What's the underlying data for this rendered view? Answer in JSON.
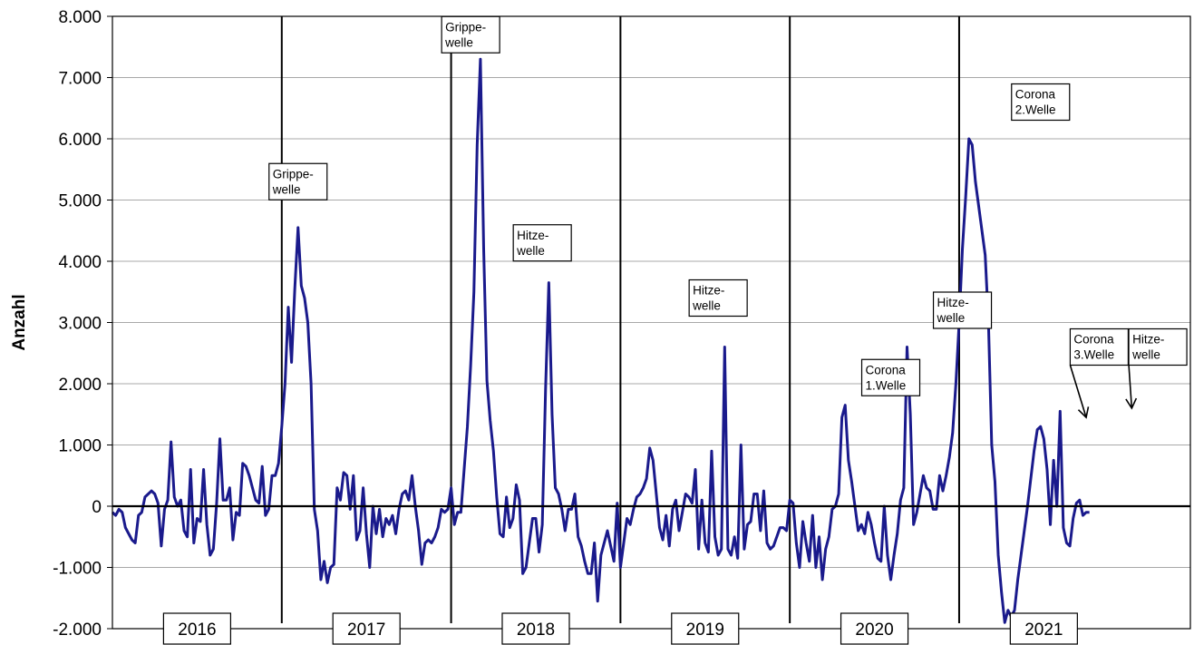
{
  "chart_data": {
    "type": "line",
    "title": "",
    "xlabel": "",
    "ylabel": "Anzahl",
    "ylim": [
      -2000,
      8000
    ],
    "y_ticks": [
      "8.000",
      "7.000",
      "6.000",
      "5.000",
      "4.000",
      "3.000",
      "2.000",
      "1.000",
      "0",
      "-1.000",
      "-2.000"
    ],
    "y_tick_values": [
      8000,
      7000,
      6000,
      5000,
      4000,
      3000,
      2000,
      1000,
      0,
      -1000,
      -2000
    ],
    "grid": "horizontal",
    "line_color": "#1a1a8c",
    "year_labels": [
      "2016",
      "2017",
      "2018",
      "2019",
      "2020",
      "2021"
    ],
    "x_unit": "Woche",
    "series": [
      {
        "values": [
          -100,
          -150,
          -50,
          -100,
          -350,
          -450,
          -550,
          -600,
          -150,
          -100,
          150,
          200,
          250,
          200,
          50,
          -650,
          -50,
          100,
          1050,
          150,
          0,
          100,
          -400,
          -500,
          600,
          -600,
          -200,
          -250,
          600,
          -300,
          -800,
          -700,
          50,
          1100,
          100,
          100,
          300,
          -550,
          -100,
          -150,
          700,
          650,
          500,
          300,
          100,
          50,
          650,
          -150,
          -50,
          500,
          500,
          700,
          1300,
          2000,
          3250,
          2350,
          3550,
          4550,
          3600,
          3400,
          3000,
          2000,
          -50,
          -400,
          -1200,
          -900,
          -1250,
          -1000,
          -950,
          300,
          100,
          550,
          500,
          -50,
          500,
          -550,
          -400,
          300,
          -450,
          -1000,
          0,
          -450,
          -50,
          -500,
          -200,
          -300,
          -150,
          -450,
          -50,
          200,
          250,
          100,
          500,
          0,
          -400,
          -950,
          -600,
          -550,
          -600,
          -500,
          -350,
          -50,
          -100,
          -50,
          300,
          -300,
          -100,
          -100,
          600,
          1300,
          2300,
          3500,
          5900,
          7300,
          4200,
          2050,
          1400,
          900,
          150,
          -450,
          -500,
          150,
          -350,
          -200,
          350,
          100,
          -1100,
          -1000,
          -600,
          -200,
          -200,
          -750,
          -300,
          1900,
          3650,
          1500,
          300,
          200,
          -50,
          -400,
          -50,
          -50,
          200,
          -500,
          -650,
          -900,
          -1100,
          -1100,
          -600,
          -1550,
          -800,
          -600,
          -400,
          -650,
          -900,
          50,
          -1000,
          -600,
          -200,
          -300,
          -50,
          150,
          200,
          300,
          450,
          950,
          750,
          200,
          -350,
          -550,
          -150,
          -650,
          -50,
          100,
          -400,
          -100,
          200,
          150,
          50,
          600,
          -700,
          100,
          -600,
          -750,
          900,
          -500,
          -800,
          -700,
          2600,
          -700,
          -800,
          -500,
          -850,
          1000,
          -700,
          -300,
          -250,
          200,
          200,
          -400,
          250,
          -600,
          -700,
          -650,
          -500,
          -350,
          -350,
          -400,
          100,
          50,
          -600,
          -1000,
          -250,
          -600,
          -900,
          -150,
          -1000,
          -500,
          -1200,
          -700,
          -500,
          -50,
          0,
          200,
          1450,
          1650,
          750,
          400,
          0,
          -400,
          -300,
          -450,
          -100,
          -300,
          -600,
          -850,
          -900,
          0,
          -800,
          -1200,
          -800,
          -450,
          100,
          300,
          2600,
          1500,
          -300,
          -100,
          200,
          500,
          300,
          250,
          -50,
          -50,
          500,
          250,
          500,
          800,
          1200,
          2000,
          3000,
          4200,
          5050,
          6000,
          5900,
          5300,
          4900,
          4500,
          4100,
          3000,
          1000,
          400,
          -800,
          -1400,
          -1900,
          -1700,
          -1800,
          -1700,
          -1200,
          -800,
          -400,
          0,
          450,
          900,
          1250,
          1300,
          1100,
          600,
          -300,
          750,
          0,
          1550,
          -350,
          -600,
          -650,
          -200,
          50,
          100,
          -150,
          -100,
          -100
        ],
        "x_start": 0,
        "x_step": 1
      }
    ],
    "year_boundaries": [
      0,
      52,
      104,
      156,
      208,
      260,
      312
    ],
    "annotations": [
      {
        "lines": [
          "Grippe-",
          "welle"
        ],
        "x": 57,
        "y": 5300
      },
      {
        "lines": [
          "Grippe-",
          "welle"
        ],
        "x": 110,
        "y": 7700
      },
      {
        "lines": [
          "Hitze-",
          "welle"
        ],
        "x": 132,
        "y": 4300
      },
      {
        "lines": [
          "Hitze-",
          "welle"
        ],
        "x": 186,
        "y": 3400
      },
      {
        "lines": [
          "Corona",
          "1.Welle"
        ],
        "x": 239,
        "y": 2100
      },
      {
        "lines": [
          "Hitze-",
          "welle"
        ],
        "x": 261,
        "y": 3200
      },
      {
        "lines": [
          "Corona",
          "2.Welle"
        ],
        "x": 285,
        "y": 6600
      },
      {
        "lines": [
          "Corona",
          "3.Welle"
        ],
        "x": 303,
        "y": 2600,
        "arrow_to": {
          "x": 299,
          "y": 1450
        }
      },
      {
        "lines": [
          "Hitze-",
          "welle"
        ],
        "x": 321,
        "y": 2600,
        "arrow_to": {
          "x": 313,
          "y": 1600
        }
      }
    ]
  }
}
